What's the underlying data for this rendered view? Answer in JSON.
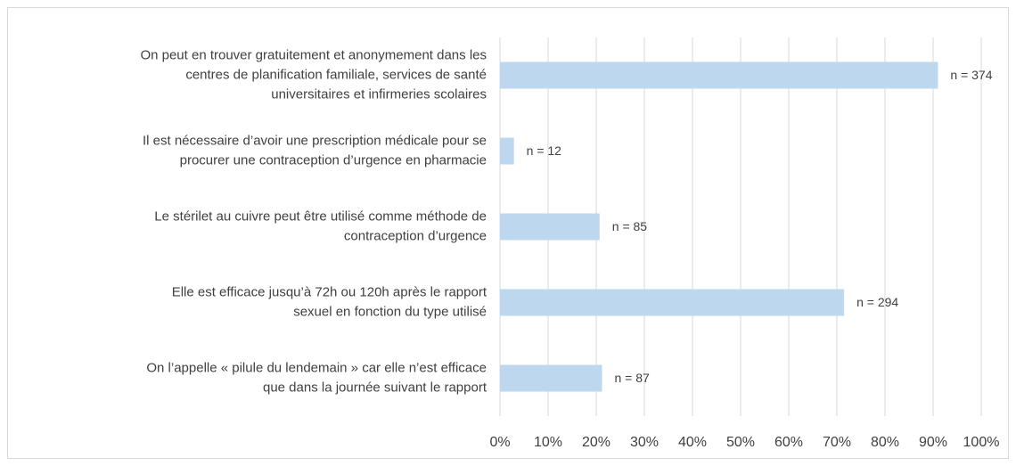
{
  "chart_data": {
    "type": "barh",
    "categories": [
      [
        "On peut en trouver gratuitement et anonymement dans les",
        "centres de planification familiale, services de santé",
        "universitaires et infirmeries scolaires"
      ],
      [
        "Il est nécessaire d’avoir une prescription médicale pour se",
        "procurer une contraception d’urgence en pharmacie"
      ],
      [
        "Le stérilet au cuivre peut être utilisé comme méthode de",
        "contraception d’urgence"
      ],
      [
        "Elle est efficace jusqu’à 72h ou 120h après le rapport",
        "sexuel en fonction du type utilisé"
      ],
      [
        "On l’appelle « pilule du lendemain » car elle n’est efficace",
        "que dans la journée suivant le rapport"
      ]
    ],
    "values": [
      91,
      2.9,
      20.7,
      71.5,
      21.2
    ],
    "labels": [
      "n = 374",
      "n = 12",
      "n = 85",
      "n = 294",
      "n = 87"
    ],
    "color": "#bdd7ee",
    "xlim": [
      0,
      100
    ],
    "xticks": [
      {
        "value": 0,
        "label": "0%"
      },
      {
        "value": 10,
        "label": "10%"
      },
      {
        "value": 20,
        "label": "20%"
      },
      {
        "value": 30,
        "label": "30%"
      },
      {
        "value": 40,
        "label": "40%"
      },
      {
        "value": 50,
        "label": "50%"
      },
      {
        "value": 60,
        "label": "60%"
      },
      {
        "value": 70,
        "label": "70%"
      },
      {
        "value": 80,
        "label": "80%"
      },
      {
        "value": 90,
        "label": "90%"
      },
      {
        "value": 100,
        "label": "100%"
      }
    ],
    "grid": true
  }
}
